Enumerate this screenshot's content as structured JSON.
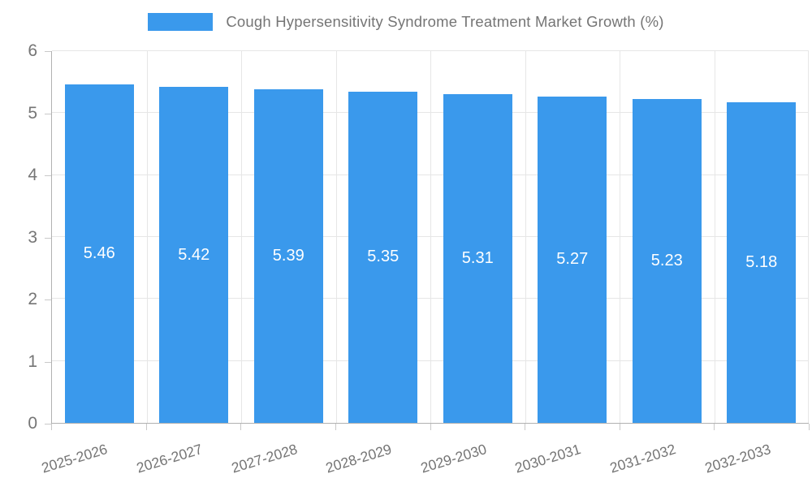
{
  "chart_data": {
    "type": "bar",
    "title": "Cough Hypersensitivity Syndrome Treatment Market Growth (%)",
    "categories": [
      "2025-2026",
      "2026-2027",
      "2027-2028",
      "2028-2029",
      "2029-2030",
      "2030-2031",
      "2031-2032",
      "2032-2033"
    ],
    "values": [
      5.46,
      5.42,
      5.39,
      5.35,
      5.31,
      5.27,
      5.23,
      5.18
    ],
    "value_labels": [
      "5.46",
      "5.42",
      "5.39",
      "5.35",
      "5.31",
      "5.27",
      "5.23",
      "5.18"
    ],
    "xlabel": "",
    "ylabel": "",
    "ylim": [
      0,
      6
    ],
    "yticks": [
      0,
      1,
      2,
      3,
      4,
      5,
      6
    ],
    "grid": true,
    "legend_position": "top",
    "colors": {
      "bar": "#3A99EC",
      "bar_value_text": "#ffffff",
      "axis_line": "#b1b1b1",
      "gridline": "#e6e6e6",
      "tick_mark": "#c9c9c9",
      "text": "#757575"
    }
  }
}
